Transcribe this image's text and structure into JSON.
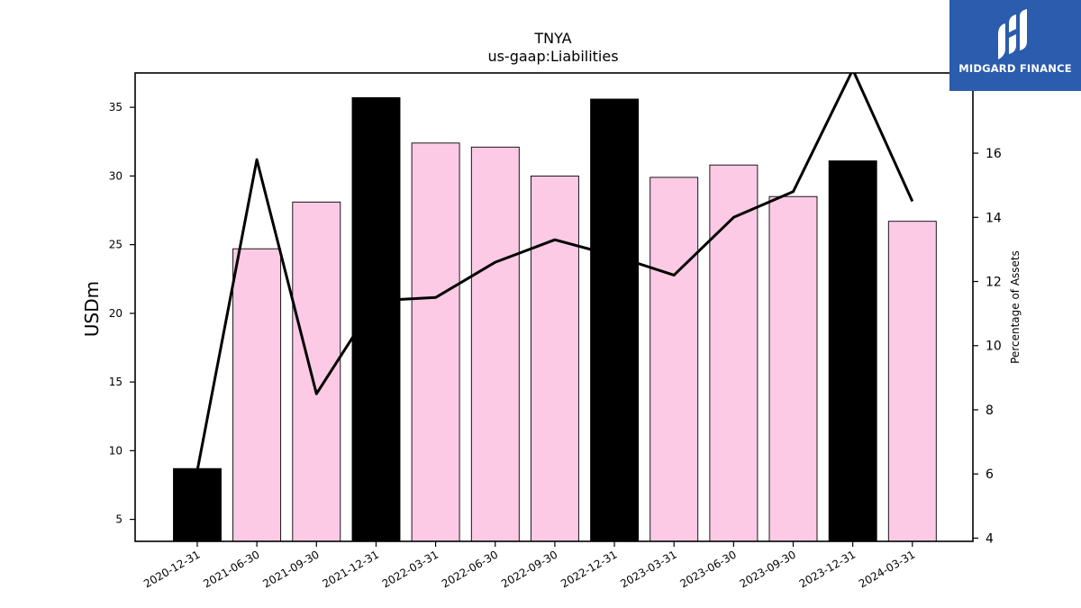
{
  "chart_data": {
    "type": "bar",
    "title": "TNYA",
    "subtitle": "us-gaap:Liabilities",
    "ylabel": "USDm",
    "y2label": "Percentage of Assets",
    "ylim": [
      3.4,
      37.5
    ],
    "y2lim": [
      3.9,
      18.5
    ],
    "yticks": [
      5,
      10,
      15,
      20,
      25,
      30,
      35
    ],
    "y2ticks": [
      4,
      6,
      8,
      10,
      12,
      14,
      16
    ],
    "categories": [
      "2020-12-31",
      "2021-06-30",
      "2021-09-30",
      "2021-12-31",
      "2022-03-31",
      "2022-06-30",
      "2022-09-30",
      "2022-12-31",
      "2023-03-31",
      "2023-06-30",
      "2023-09-30",
      "2023-12-31",
      "2024-03-31"
    ],
    "series": [
      {
        "values": [
          8.7,
          24.7,
          28.1,
          35.7,
          32.4,
          32.1,
          30.0,
          35.6,
          29.9,
          30.8,
          28.5,
          31.1,
          26.7
        ],
        "colors": [
          "#000000",
          "#fccae5",
          "#fccae5",
          "#000000",
          "#fccae5",
          "#fccae5",
          "#fccae5",
          "#000000",
          "#fccae5",
          "#fccae5",
          "#fccae5",
          "#000000",
          "#fccae5"
        ]
      },
      {
        "type": "line",
        "axis": "right",
        "values": [
          6.1,
          15.8,
          8.5,
          11.4,
          11.5,
          12.6,
          13.3,
          12.8,
          12.2,
          14.0,
          14.8,
          18.6,
          14.5
        ],
        "color": "#000000"
      }
    ],
    "grid": false
  },
  "logo": {
    "text": "MIDGARD FINANCE"
  }
}
